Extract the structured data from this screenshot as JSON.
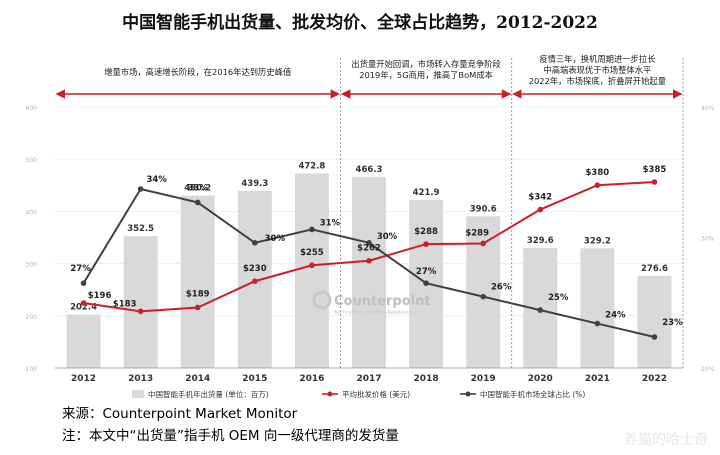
{
  "title": "中国智能手机出货量、批发均价、全球占比趋势，2012-2022",
  "annotations": [
    {
      "text": "增量市场，高速增长阶段，在2016年达到历史峰值"
    },
    {
      "text": "出货量开始回调，市场转入存量竞争阶段\n2019年，5G商用，推高了BoM成本"
    },
    {
      "text": "疫情三年，换机周期进一步拉长\n中高端表现优于市场整体水平\n2022年，市场探底，折叠屏开始起量"
    }
  ],
  "watermark_logo": {
    "name": "Counterpoint",
    "tagline": "Technology Market Research"
  },
  "footer": {
    "source": "来源：Counterpoint Market Monitor",
    "note": "注：本文中“出货量”指手机 OEM 向一级代理商的发货量"
  },
  "corner_watermark": "养猫的哈士奇",
  "colors": {
    "bar": "#d9d9d9",
    "price_line": "#c9202a",
    "share_line": "#404040",
    "arrow": "#c9202a",
    "grid": "#e6e6e6"
  },
  "chart_data": {
    "type": "bar",
    "categories": [
      "2012",
      "2013",
      "2014",
      "2015",
      "2016",
      "2017",
      "2018",
      "2019",
      "2020",
      "2021",
      "2022"
    ],
    "series": [
      {
        "name": "中国智能手机年出货量 (单位：百万)",
        "type": "bar",
        "values": [
          202.4,
          352.5,
          430.2,
          439.3,
          472.8,
          466.3,
          421.9,
          390.6,
          329.6,
          329.2,
          276.6
        ],
        "labels": [
          "202.4",
          "352.5",
          "430.2",
          "439.3",
          "472.8",
          "466.3",
          "421.9",
          "390.6",
          "329.6",
          "329.2",
          "276.6"
        ]
      },
      {
        "name": "平均批发价格 (美元)",
        "type": "line",
        "values": [
          196,
          183,
          189,
          230,
          255,
          262,
          288,
          289,
          342,
          380,
          385
        ],
        "labels": [
          "$196",
          "$183",
          "$189",
          "$230",
          "$255",
          "$262",
          "$288",
          "$289",
          "$342",
          "$380",
          "$385"
        ]
      },
      {
        "name": "中国智能手机市场全球占比 (%)",
        "type": "line",
        "values": [
          27,
          34,
          33,
          30,
          31,
          30,
          27,
          26,
          25,
          24,
          23
        ],
        "labels": [
          "27%",
          "34%",
          "33%",
          "30%",
          "31%",
          "30%",
          "27%",
          "26%",
          "25%",
          "24%",
          "23%"
        ]
      }
    ],
    "y_left": {
      "ticks": [
        "100",
        "200",
        "300",
        "400",
        "500",
        "600"
      ],
      "range": [
        100,
        600
      ]
    },
    "y_right": {
      "ticks": [
        "20%",
        "30%",
        "40%"
      ],
      "range": [
        20,
        40
      ]
    },
    "legend_position": "bottom",
    "grid": false
  }
}
